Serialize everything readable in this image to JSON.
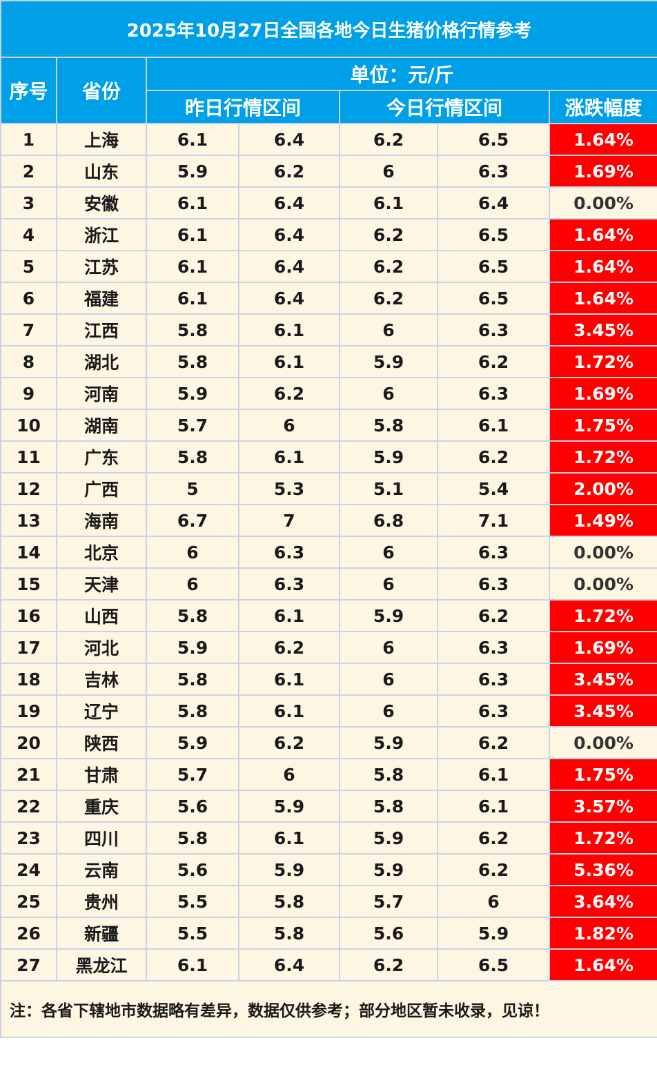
{
  "title": "2025年10月27日全国各地今日生猪价格行情参考",
  "headers": {
    "index": "序号",
    "province": "省份",
    "unit": "单位：元/斤",
    "yesterday_range": "昨日行情区间",
    "today_range": "今日行情区间",
    "change": "涨跌幅度"
  },
  "rows": [
    {
      "idx": "1",
      "province": "上海",
      "y_low": "6.1",
      "y_high": "6.4",
      "t_low": "6.2",
      "t_high": "6.5",
      "change": "1.64%",
      "trend": "up"
    },
    {
      "idx": "2",
      "province": "山东",
      "y_low": "5.9",
      "y_high": "6.2",
      "t_low": "6",
      "t_high": "6.3",
      "change": "1.69%",
      "trend": "up"
    },
    {
      "idx": "3",
      "province": "安徽",
      "y_low": "6.1",
      "y_high": "6.4",
      "t_low": "6.1",
      "t_high": "6.4",
      "change": "0.00%",
      "trend": "flat"
    },
    {
      "idx": "4",
      "province": "浙江",
      "y_low": "6.1",
      "y_high": "6.4",
      "t_low": "6.2",
      "t_high": "6.5",
      "change": "1.64%",
      "trend": "up"
    },
    {
      "idx": "5",
      "province": "江苏",
      "y_low": "6.1",
      "y_high": "6.4",
      "t_low": "6.2",
      "t_high": "6.5",
      "change": "1.64%",
      "trend": "up"
    },
    {
      "idx": "6",
      "province": "福建",
      "y_low": "6.1",
      "y_high": "6.4",
      "t_low": "6.2",
      "t_high": "6.5",
      "change": "1.64%",
      "trend": "up"
    },
    {
      "idx": "7",
      "province": "江西",
      "y_low": "5.8",
      "y_high": "6.1",
      "t_low": "6",
      "t_high": "6.3",
      "change": "3.45%",
      "trend": "up"
    },
    {
      "idx": "8",
      "province": "湖北",
      "y_low": "5.8",
      "y_high": "6.1",
      "t_low": "5.9",
      "t_high": "6.2",
      "change": "1.72%",
      "trend": "up"
    },
    {
      "idx": "9",
      "province": "河南",
      "y_low": "5.9",
      "y_high": "6.2",
      "t_low": "6",
      "t_high": "6.3",
      "change": "1.69%",
      "trend": "up"
    },
    {
      "idx": "10",
      "province": "湖南",
      "y_low": "5.7",
      "y_high": "6",
      "t_low": "5.8",
      "t_high": "6.1",
      "change": "1.75%",
      "trend": "up"
    },
    {
      "idx": "11",
      "province": "广东",
      "y_low": "5.8",
      "y_high": "6.1",
      "t_low": "5.9",
      "t_high": "6.2",
      "change": "1.72%",
      "trend": "up"
    },
    {
      "idx": "12",
      "province": "广西",
      "y_low": "5",
      "y_high": "5.3",
      "t_low": "5.1",
      "t_high": "5.4",
      "change": "2.00%",
      "trend": "up"
    },
    {
      "idx": "13",
      "province": "海南",
      "y_low": "6.7",
      "y_high": "7",
      "t_low": "6.8",
      "t_high": "7.1",
      "change": "1.49%",
      "trend": "up"
    },
    {
      "idx": "14",
      "province": "北京",
      "y_low": "6",
      "y_high": "6.3",
      "t_low": "6",
      "t_high": "6.3",
      "change": "0.00%",
      "trend": "flat"
    },
    {
      "idx": "15",
      "province": "天津",
      "y_low": "6",
      "y_high": "6.3",
      "t_low": "6",
      "t_high": "6.3",
      "change": "0.00%",
      "trend": "flat"
    },
    {
      "idx": "16",
      "province": "山西",
      "y_low": "5.8",
      "y_high": "6.1",
      "t_low": "5.9",
      "t_high": "6.2",
      "change": "1.72%",
      "trend": "up"
    },
    {
      "idx": "17",
      "province": "河北",
      "y_low": "5.9",
      "y_high": "6.2",
      "t_low": "6",
      "t_high": "6.3",
      "change": "1.69%",
      "trend": "up"
    },
    {
      "idx": "18",
      "province": "吉林",
      "y_low": "5.8",
      "y_high": "6.1",
      "t_low": "6",
      "t_high": "6.3",
      "change": "3.45%",
      "trend": "up"
    },
    {
      "idx": "19",
      "province": "辽宁",
      "y_low": "5.8",
      "y_high": "6.1",
      "t_low": "6",
      "t_high": "6.3",
      "change": "3.45%",
      "trend": "up"
    },
    {
      "idx": "20",
      "province": "陕西",
      "y_low": "5.9",
      "y_high": "6.2",
      "t_low": "5.9",
      "t_high": "6.2",
      "change": "0.00%",
      "trend": "flat"
    },
    {
      "idx": "21",
      "province": "甘肃",
      "y_low": "5.7",
      "y_high": "6",
      "t_low": "5.8",
      "t_high": "6.1",
      "change": "1.75%",
      "trend": "up"
    },
    {
      "idx": "22",
      "province": "重庆",
      "y_low": "5.6",
      "y_high": "5.9",
      "t_low": "5.8",
      "t_high": "6.1",
      "change": "3.57%",
      "trend": "up"
    },
    {
      "idx": "23",
      "province": "四川",
      "y_low": "5.8",
      "y_high": "6.1",
      "t_low": "5.9",
      "t_high": "6.2",
      "change": "1.72%",
      "trend": "up"
    },
    {
      "idx": "24",
      "province": "云南",
      "y_low": "5.6",
      "y_high": "5.9",
      "t_low": "5.9",
      "t_high": "6.2",
      "change": "5.36%",
      "trend": "up"
    },
    {
      "idx": "25",
      "province": "贵州",
      "y_low": "5.5",
      "y_high": "5.8",
      "t_low": "5.7",
      "t_high": "6",
      "change": "3.64%",
      "trend": "up"
    },
    {
      "idx": "26",
      "province": "新疆",
      "y_low": "5.5",
      "y_high": "5.8",
      "t_low": "5.6",
      "t_high": "5.9",
      "change": "1.82%",
      "trend": "up"
    },
    {
      "idx": "27",
      "province": "黑龙江",
      "y_low": "6.1",
      "y_high": "6.4",
      "t_low": "6.2",
      "t_high": "6.5",
      "change": "1.64%",
      "trend": "up"
    }
  ],
  "note": "注：各省下辖地市数据略有差异，数据仅供参考；部分地区暂未收录，见谅！",
  "colors": {
    "header_bg": "#00a0e9",
    "up_bg": "#ff0000",
    "row_bg": "#fdf6e3",
    "border": "#c9d3e6"
  }
}
